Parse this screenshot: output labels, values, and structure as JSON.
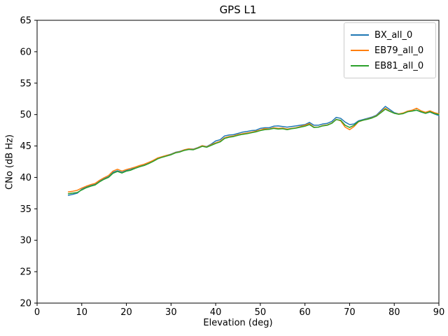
{
  "title": "GPS L1",
  "xlabel": "Elevation (deg)",
  "ylabel": "CNo (dB Hz)",
  "colors": {
    "background": "#ffffff",
    "axis": "#000000",
    "legend_border": "#cccccc",
    "series_blue": "#1f77b4",
    "series_orange": "#ff7f0e",
    "series_green": "#2ca02c"
  },
  "legend": {
    "position": "upper right",
    "items": [
      {
        "label": "BX_all_0"
      },
      {
        "label": "EB79_all_0"
      },
      {
        "label": "EB81_all_0"
      }
    ]
  },
  "chart_data": {
    "type": "line",
    "title": "GPS L1",
    "xlabel": "Elevation (deg)",
    "ylabel": "CNo (dB Hz)",
    "xlim": [
      0,
      90
    ],
    "ylim": [
      20,
      65
    ],
    "xticks": [
      0,
      10,
      20,
      30,
      40,
      50,
      60,
      70,
      80,
      90
    ],
    "yticks": [
      20,
      25,
      30,
      35,
      40,
      45,
      50,
      55,
      60,
      65
    ],
    "grid": false,
    "legend_position": "upper right",
    "x": [
      7,
      8,
      9,
      10,
      11,
      12,
      13,
      14,
      15,
      16,
      17,
      18,
      19,
      20,
      21,
      22,
      23,
      24,
      25,
      26,
      27,
      28,
      29,
      30,
      31,
      32,
      33,
      34,
      35,
      36,
      37,
      38,
      39,
      40,
      41,
      42,
      43,
      44,
      45,
      46,
      47,
      48,
      49,
      50,
      51,
      52,
      53,
      54,
      55,
      56,
      57,
      58,
      59,
      60,
      61,
      62,
      63,
      64,
      65,
      66,
      67,
      68,
      69,
      70,
      71,
      72,
      73,
      74,
      75,
      76,
      77,
      78,
      79,
      80,
      81,
      82,
      83,
      84,
      85,
      86,
      87,
      88,
      89,
      90
    ],
    "series": [
      {
        "name": "BX_all_0",
        "color": "#1f77b4",
        "values": [
          37.15,
          37.3,
          37.5,
          38.1,
          38.5,
          38.7,
          38.9,
          39.4,
          39.8,
          40.1,
          40.8,
          41.05,
          40.8,
          41.1,
          41.25,
          41.6,
          41.85,
          42.0,
          42.3,
          42.7,
          43.05,
          43.3,
          43.5,
          43.7,
          44.0,
          44.15,
          44.4,
          44.55,
          44.5,
          44.75,
          45.05,
          44.9,
          45.3,
          45.8,
          46.0,
          46.6,
          46.75,
          46.8,
          47.0,
          47.2,
          47.3,
          47.45,
          47.5,
          47.8,
          47.9,
          47.9,
          48.15,
          48.2,
          48.1,
          48.0,
          48.1,
          48.2,
          48.3,
          48.4,
          48.75,
          48.3,
          48.3,
          48.5,
          48.6,
          48.9,
          49.55,
          49.4,
          48.8,
          48.4,
          48.5,
          49.0,
          49.2,
          49.4,
          49.6,
          49.9,
          50.6,
          51.3,
          50.8,
          50.3,
          50.1,
          50.2,
          50.5,
          50.6,
          50.7,
          50.4,
          50.2,
          50.4,
          50.1,
          49.85
        ]
      },
      {
        "name": "EB79_all_0",
        "color": "#ff7f0e",
        "values": [
          37.7,
          37.8,
          37.95,
          38.3,
          38.6,
          38.85,
          39.05,
          39.55,
          39.95,
          40.3,
          41.0,
          41.3,
          41.0,
          41.25,
          41.45,
          41.65,
          41.9,
          42.1,
          42.4,
          42.7,
          43.1,
          43.3,
          43.5,
          43.65,
          43.95,
          44.1,
          44.4,
          44.55,
          44.45,
          44.7,
          45.05,
          44.85,
          45.2,
          45.5,
          45.75,
          46.3,
          46.5,
          46.6,
          46.8,
          46.95,
          47.05,
          47.2,
          47.35,
          47.55,
          47.75,
          47.7,
          47.9,
          47.8,
          47.85,
          47.7,
          47.8,
          47.9,
          48.1,
          48.3,
          48.55,
          48.0,
          48.0,
          48.25,
          48.35,
          48.65,
          49.25,
          49.0,
          48.0,
          47.6,
          48.1,
          48.85,
          49.1,
          49.3,
          49.5,
          49.8,
          50.4,
          51.0,
          50.55,
          50.2,
          50.1,
          50.25,
          50.55,
          50.7,
          51.0,
          50.6,
          50.35,
          50.6,
          50.3,
          50.1
        ]
      },
      {
        "name": "EB81_all_0",
        "color": "#2ca02c",
        "values": [
          37.4,
          37.5,
          37.6,
          38.0,
          38.35,
          38.6,
          38.8,
          39.3,
          39.7,
          40.0,
          40.65,
          40.95,
          40.7,
          41.0,
          41.15,
          41.45,
          41.7,
          41.9,
          42.2,
          42.55,
          42.95,
          43.2,
          43.4,
          43.6,
          43.9,
          44.05,
          44.3,
          44.45,
          44.4,
          44.65,
          44.95,
          44.8,
          45.1,
          45.4,
          45.65,
          46.2,
          46.4,
          46.5,
          46.7,
          46.85,
          46.95,
          47.1,
          47.25,
          47.45,
          47.6,
          47.65,
          47.8,
          47.7,
          47.75,
          47.6,
          47.75,
          47.85,
          48.0,
          48.15,
          48.4,
          47.95,
          48.0,
          48.2,
          48.3,
          48.6,
          49.2,
          49.1,
          48.3,
          47.95,
          48.3,
          48.9,
          49.1,
          49.25,
          49.45,
          49.75,
          50.3,
          50.85,
          50.5,
          50.2,
          50.05,
          50.15,
          50.45,
          50.55,
          50.7,
          50.45,
          50.2,
          50.45,
          50.15,
          50.0
        ]
      }
    ]
  }
}
